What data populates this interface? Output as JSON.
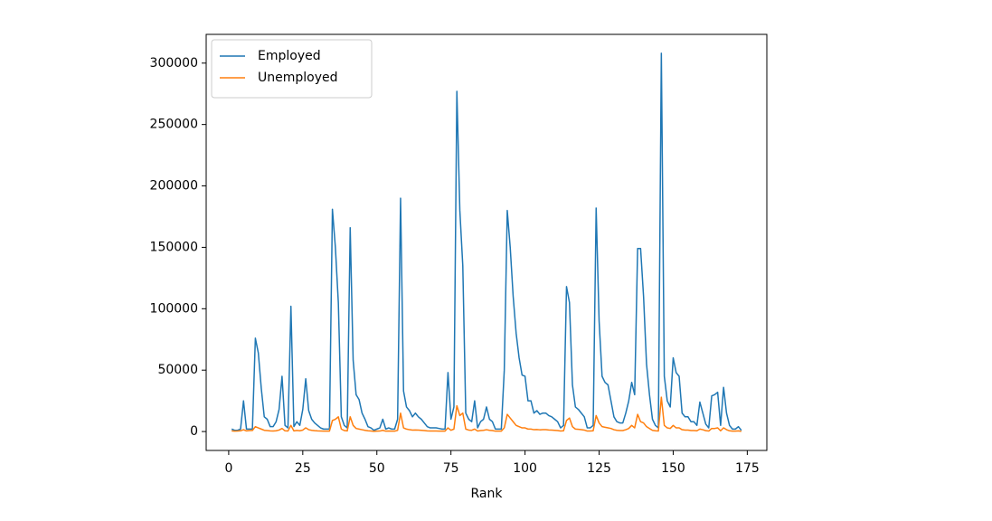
{
  "chart_data": {
    "type": "line",
    "x_label": "Rank",
    "x": [
      1,
      2,
      3,
      4,
      5,
      6,
      7,
      8,
      9,
      10,
      11,
      12,
      13,
      14,
      15,
      16,
      17,
      18,
      19,
      20,
      21,
      22,
      23,
      24,
      25,
      26,
      27,
      28,
      29,
      30,
      31,
      32,
      33,
      34,
      35,
      36,
      37,
      38,
      39,
      40,
      41,
      42,
      43,
      44,
      45,
      46,
      47,
      48,
      49,
      50,
      51,
      52,
      53,
      54,
      55,
      56,
      57,
      58,
      59,
      60,
      61,
      62,
      63,
      64,
      65,
      66,
      67,
      68,
      69,
      70,
      71,
      72,
      73,
      74,
      75,
      76,
      77,
      78,
      79,
      80,
      81,
      82,
      83,
      84,
      85,
      86,
      87,
      88,
      89,
      90,
      91,
      92,
      93,
      94,
      95,
      96,
      97,
      98,
      99,
      100,
      101,
      102,
      103,
      104,
      105,
      106,
      107,
      108,
      109,
      110,
      111,
      112,
      113,
      114,
      115,
      116,
      117,
      118,
      119,
      120,
      121,
      122,
      123,
      124,
      125,
      126,
      127,
      128,
      129,
      130,
      131,
      132,
      133,
      134,
      135,
      136,
      137,
      138,
      139,
      140,
      141,
      142,
      143,
      144,
      145,
      146,
      147,
      148,
      149,
      150,
      151,
      152,
      153,
      154,
      155,
      156,
      157,
      158,
      159,
      160,
      161,
      162,
      163,
      164,
      165,
      166,
      167,
      168,
      169,
      170,
      171,
      172,
      173
    ],
    "series": [
      {
        "name": "Employed",
        "color": "#1f77b4",
        "values": [
          2000,
          1000,
          1000,
          2000,
          25000,
          2000,
          2000,
          2000,
          76000,
          64000,
          35000,
          12000,
          10000,
          4000,
          4000,
          8000,
          18000,
          45000,
          5000,
          3000,
          102000,
          4000,
          8000,
          5000,
          18000,
          43000,
          17000,
          10000,
          7000,
          5000,
          3000,
          2000,
          2000,
          2000,
          181000,
          150000,
          105000,
          12000,
          5000,
          3000,
          166000,
          58000,
          30000,
          26000,
          15000,
          10000,
          4000,
          3000,
          1000,
          2000,
          3000,
          10000,
          2000,
          3000,
          2000,
          2000,
          10000,
          190000,
          33000,
          20000,
          17000,
          12000,
          15000,
          12000,
          10000,
          7000,
          4000,
          3000,
          3000,
          3000,
          2500,
          2000,
          2000,
          48000,
          10000,
          20000,
          277000,
          180000,
          135000,
          15000,
          10000,
          8000,
          25000,
          3000,
          8000,
          10000,
          20000,
          10000,
          8000,
          2000,
          2000,
          2000,
          50000,
          180000,
          150000,
          110000,
          80000,
          60000,
          46000,
          45000,
          25000,
          25000,
          15000,
          17000,
          14000,
          15000,
          15000,
          13000,
          12000,
          10000,
          8000,
          3000,
          5000,
          118000,
          105000,
          38000,
          20000,
          18000,
          15000,
          12000,
          3000,
          3000,
          5000,
          182000,
          90000,
          45000,
          40000,
          38000,
          25000,
          12000,
          8000,
          7000,
          7000,
          15000,
          25000,
          40000,
          30000,
          149000,
          149000,
          110000,
          55000,
          30000,
          10000,
          5000,
          3000,
          308000,
          45000,
          25000,
          20000,
          60000,
          48000,
          45000,
          15000,
          12000,
          12000,
          8000,
          8000,
          5000,
          24000,
          15000,
          6000,
          3000,
          29000,
          30000,
          32000,
          5000,
          36000,
          15000,
          5000,
          2000,
          2000,
          4000,
          1000
        ]
      },
      {
        "name": "Unemployed",
        "color": "#ff7f0e",
        "values": [
          500,
          300,
          400,
          600,
          1500,
          500,
          800,
          900,
          4000,
          3000,
          2000,
          1000,
          800,
          500,
          400,
          600,
          1200,
          2500,
          600,
          400,
          5000,
          500,
          900,
          600,
          1200,
          3000,
          1500,
          1000,
          700,
          500,
          400,
          300,
          300,
          300,
          9000,
          10000,
          12000,
          2000,
          800,
          500,
          12000,
          5000,
          2500,
          2000,
          1500,
          1000,
          600,
          400,
          200,
          300,
          400,
          1000,
          300,
          400,
          300,
          300,
          1000,
          15000,
          3000,
          2000,
          1500,
          1200,
          1300,
          1200,
          1000,
          800,
          500,
          400,
          400,
          400,
          300,
          300,
          300,
          3000,
          1000,
          2000,
          21000,
          13000,
          15000,
          2000,
          1200,
          1000,
          2000,
          400,
          800,
          1000,
          1500,
          1000,
          800,
          300,
          300,
          300,
          3000,
          14000,
          11000,
          8000,
          5000,
          4000,
          3000,
          3000,
          2000,
          2000,
          1500,
          1600,
          1400,
          1500,
          1500,
          1300,
          1200,
          1000,
          800,
          400,
          600,
          9000,
          11000,
          4000,
          2000,
          1800,
          1500,
          1200,
          400,
          400,
          600,
          13000,
          7000,
          4000,
          3500,
          3000,
          2500,
          1500,
          1000,
          800,
          800,
          1500,
          2500,
          5000,
          3000,
          14000,
          8000,
          7000,
          4000,
          2500,
          1000,
          600,
          400,
          28000,
          5000,
          3000,
          2500,
          5000,
          3000,
          3000,
          1500,
          1200,
          1200,
          800,
          800,
          600,
          2000,
          1500,
          700,
          400,
          2500,
          2500,
          3000,
          600,
          3000,
          1500,
          600,
          300,
          300,
          500,
          200
        ]
      }
    ],
    "xlim": [
      -7.6,
      181.6
    ],
    "xticks": [
      0,
      25,
      50,
      75,
      100,
      125,
      150,
      175
    ],
    "ylim": [
      -15400,
      323400
    ],
    "yticks": [
      0,
      50000,
      100000,
      150000,
      200000,
      250000,
      300000
    ],
    "legend": "upper left",
    "grid": false
  }
}
